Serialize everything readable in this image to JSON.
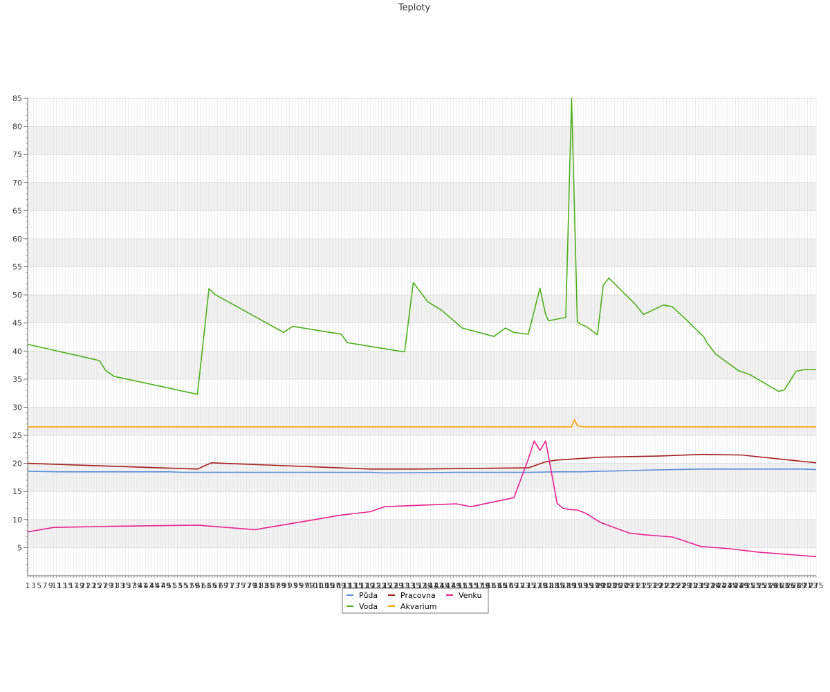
{
  "chart_data": {
    "type": "line",
    "title": "Teploty",
    "xlabel": "",
    "ylabel": "",
    "ylim": [
      0,
      85
    ],
    "yticks": [
      5,
      10,
      15,
      20,
      25,
      30,
      35,
      40,
      45,
      50,
      55,
      60,
      65,
      70,
      75,
      80,
      85
    ],
    "x_tick_labels_note": "",
    "xlim": [
      1,
      275
    ],
    "grid": true,
    "legend_placement": "bottom",
    "series": [
      {
        "name": "Půda",
        "color": "#5b8fd9",
        "x": [
          1,
          12,
          40,
          50,
          55,
          70,
          100,
          120,
          125,
          150,
          175,
          185,
          193,
          200,
          210,
          215,
          235,
          270,
          275
        ],
        "values": [
          18.6,
          18.5,
          18.5,
          18.5,
          18.4,
          18.4,
          18.4,
          18.4,
          18.3,
          18.4,
          18.4,
          18.5,
          18.5,
          18.6,
          18.7,
          18.8,
          19.0,
          19.0,
          18.9
        ]
      },
      {
        "name": "Pracovna",
        "color": "#a51c1c",
        "x": [
          1,
          30,
          60,
          63,
          65,
          120,
          135,
          175,
          181,
          185,
          200,
          220,
          235,
          249,
          275
        ],
        "values": [
          20.0,
          19.5,
          19.0,
          19.7,
          20.1,
          19.0,
          19.0,
          19.2,
          20.3,
          20.6,
          21.1,
          21.3,
          21.6,
          21.5,
          20.1
        ]
      },
      {
        "name": "Venku",
        "color": "#e8208f",
        "x": [
          1,
          10,
          30,
          60,
          80,
          95,
          110,
          120,
          125,
          140,
          150,
          155,
          170,
          175,
          177,
          179,
          181,
          185,
          187,
          189,
          192,
          195,
          200,
          210,
          215,
          225,
          235,
          245,
          255,
          275
        ],
        "values": [
          7.8,
          8.6,
          8.8,
          9.0,
          8.2,
          9.5,
          10.8,
          11.4,
          12.3,
          12.6,
          12.8,
          12.3,
          13.9,
          20.8,
          24.0,
          22.3,
          24.0,
          12.9,
          12.0,
          11.8,
          11.7,
          11.1,
          9.5,
          7.6,
          7.3,
          6.9,
          5.2,
          4.8,
          4.2,
          3.4
        ]
      },
      {
        "name": "Voda",
        "color": "#4caf1a",
        "x": [
          1,
          26,
          28,
          31,
          60,
          64,
          66,
          90,
          93,
          110,
          112,
          130,
          132,
          135,
          140,
          145,
          152,
          163,
          167,
          170,
          175,
          179,
          181,
          182,
          188,
          190,
          192,
          193,
          195,
          199,
          201,
          203,
          212,
          215,
          222,
          225,
          230,
          235,
          236,
          237,
          240,
          248,
          252,
          262,
          264,
          268,
          271,
          275
        ],
        "values": [
          41.2,
          38.3,
          36.6,
          35.5,
          32.3,
          51.1,
          50.1,
          43.3,
          44.4,
          43.0,
          41.5,
          40.0,
          39.9,
          52.2,
          48.8,
          47.2,
          44.1,
          42.6,
          44.1,
          43.3,
          43.0,
          51.2,
          46.5,
          45.4,
          46.0,
          85,
          45.3,
          44.8,
          44.4,
          42.9,
          51.7,
          53.0,
          48.4,
          46.5,
          48.2,
          47.9,
          45.5,
          43.0,
          42.5,
          41.5,
          39.5,
          36.5,
          35.8,
          32.8,
          33.1,
          36.4,
          36.7,
          36.7
        ]
      },
      {
        "name": "Akvarium",
        "color": "#ffa000",
        "x": [
          1,
          190,
          191,
          192,
          194,
          275
        ],
        "values": [
          26.5,
          26.5,
          27.8,
          26.7,
          26.5,
          26.5
        ]
      }
    ]
  }
}
